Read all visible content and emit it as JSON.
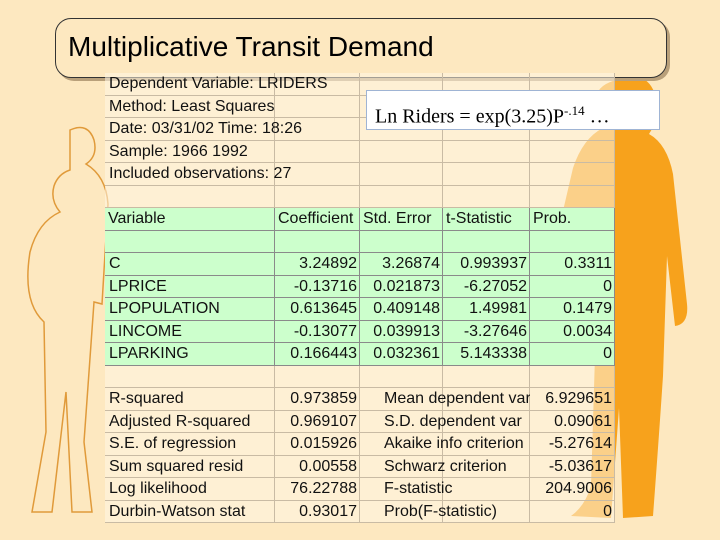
{
  "title": "Multiplicative Transit Demand",
  "equation": {
    "base": "Ln Riders = exp(3.25)P",
    "exponent": "-.14",
    "tail": " …"
  },
  "info": [
    "Dependent Variable: LRIDERS",
    "Method: Least Squares",
    "Date: 03/31/02   Time: 18:26",
    "Sample: 1966 1992",
    "Included observations: 27"
  ],
  "coef_table": {
    "header": [
      "Variable",
      "Coefficient",
      "Std. Error",
      "t-Statistic",
      "Prob."
    ],
    "rows": [
      [
        "C",
        "3.24892",
        "3.26874",
        "0.993937",
        "0.3311"
      ],
      [
        "LPRICE",
        "-0.13716",
        "0.021873",
        "-6.27052",
        "0"
      ],
      [
        "LPOPULATION",
        "0.613645",
        "0.409148",
        "1.49981",
        "0.1479"
      ],
      [
        "LINCOME",
        "-0.13077",
        "0.039913",
        "-3.27646",
        "0.0034"
      ],
      [
        "LPARKING",
        "0.166443",
        "0.032361",
        "5.143338",
        "0"
      ]
    ]
  },
  "stats": [
    [
      "R-squared",
      "0.973859",
      "Mean dependent var",
      "6.929651"
    ],
    [
      "Adjusted R-squared",
      "0.969107",
      "S.D. dependent var",
      "0.09061"
    ],
    [
      "S.E. of regression",
      "0.015926",
      "Akaike info criterion",
      "-5.27614"
    ],
    [
      "Sum squared resid",
      "0.00558",
      "Schwarz criterion",
      "-5.03617"
    ],
    [
      "Log likelihood",
      "76.22788",
      "F-statistic",
      "204.9006"
    ],
    [
      "Durbin-Watson stat",
      "0.93017",
      "Prob(F-statistic)",
      "0"
    ]
  ]
}
